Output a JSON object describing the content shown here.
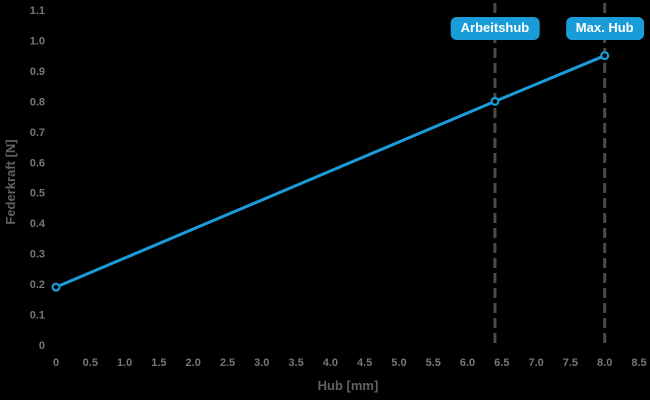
{
  "chart_data": {
    "type": "line",
    "xlabel": "Hub [mm]",
    "ylabel": "Federkraft [N]",
    "xlim": [
      0,
      8.5
    ],
    "ylim": [
      0,
      1.1
    ],
    "grid": false,
    "legend": false,
    "xticks": {
      "values": [
        0,
        0.5,
        1.0,
        1.5,
        2.0,
        2.5,
        3.0,
        3.5,
        4.0,
        4.5,
        5.0,
        5.5,
        6.0,
        6.5,
        7.0,
        7.5,
        8.0,
        8.5
      ],
      "labels": [
        "0",
        "0.5",
        "1.0",
        "1.5",
        "2.0",
        "2.5",
        "3.0",
        "3.5",
        "4.0",
        "4.5",
        "5.0",
        "5.5",
        "6.0",
        "6.5",
        "7.0",
        "7.5",
        "8.0",
        "8.5"
      ]
    },
    "yticks": {
      "values": [
        0,
        0.1,
        0.2,
        0.3,
        0.4,
        0.5,
        0.6,
        0.7,
        0.8,
        0.9,
        1.0,
        1.1
      ],
      "labels": [
        "0",
        "0.1",
        "0.2",
        "0.3",
        "0.4",
        "0.5",
        "0.6",
        "0.7",
        "0.8",
        "0.9",
        "1.0",
        "1.1"
      ]
    },
    "series": [
      {
        "points": [
          {
            "x": 0,
            "y": 0.19
          },
          {
            "x": 6.4,
            "y": 0.8
          },
          {
            "x": 8.0,
            "y": 0.95
          }
        ]
      }
    ],
    "annotations": [
      {
        "label": "Arbeitshub",
        "x": 6.4,
        "line_style": "dashed"
      },
      {
        "label": "Max. Hub",
        "x": 8.0,
        "line_style": "dashed"
      }
    ],
    "colors": {
      "background": "#000000",
      "line": "#1a9cd9",
      "marker_fill": "#000000",
      "badge_bg": "#1a9cd9",
      "badge_text": "#ffffff",
      "guide_line": "#4b4b4b",
      "tick_label": "#757678",
      "axis_label": "#606164"
    }
  }
}
